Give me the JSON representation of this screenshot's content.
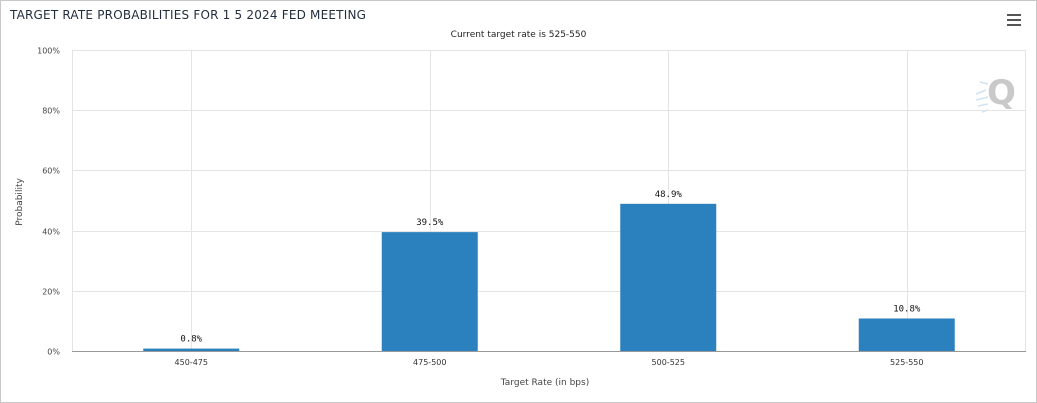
{
  "header": {
    "title": "TARGET RATE PROBABILITIES FOR 1 5 2024 FED MEETING",
    "menu_icon": "hamburger-menu-icon",
    "watermark_icon": "q-logo-icon",
    "watermark_text": "Q"
  },
  "chart_data": {
    "type": "bar",
    "title": "TARGET RATE PROBABILITIES FOR 1 5 2024 FED MEETING",
    "subtitle": "Current target rate is 525-550",
    "xlabel": "Target Rate (in bps)",
    "ylabel": "Probability",
    "categories": [
      "450-475",
      "475-500",
      "500-525",
      "525-550"
    ],
    "values": [
      0.8,
      39.5,
      48.9,
      10.8
    ],
    "data_labels": [
      "0.8%",
      "39.5%",
      "48.9%",
      "10.8%"
    ],
    "ylim": [
      0,
      100
    ],
    "y_ticks": [
      0,
      20,
      40,
      60,
      80,
      100
    ],
    "y_tick_labels": [
      "0%",
      "20%",
      "40%",
      "60%",
      "80%",
      "100%"
    ],
    "grid": true,
    "legend": "none",
    "bar_color": "#2a81bd",
    "grid_color": "#e4e4e4"
  }
}
